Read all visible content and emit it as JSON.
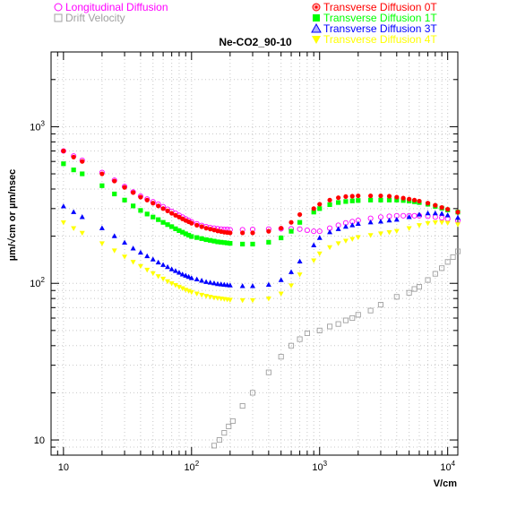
{
  "chart_data": {
    "type": "scatter",
    "title": "Ne-CO2_90-10",
    "xlabel": "V/cm",
    "ylabel": "µm/√cm or µm/nsec",
    "xscale": "log",
    "yscale": "log",
    "xlim": [
      8,
      12000
    ],
    "ylim": [
      8,
      3000
    ],
    "grid": true,
    "x_ticks": [
      {
        "value": 10,
        "base": "10",
        "exp": ""
      },
      {
        "value": 100,
        "base": "10",
        "exp": "2"
      },
      {
        "value": 1000,
        "base": "10",
        "exp": "3"
      },
      {
        "value": 10000,
        "base": "10",
        "exp": "4"
      }
    ],
    "y_ticks": [
      {
        "value": 10,
        "base": "10",
        "exp": ""
      },
      {
        "value": 100,
        "base": "10",
        "exp": "2"
      },
      {
        "value": 1000,
        "base": "10",
        "exp": "3"
      }
    ],
    "legend": {
      "placement": "top",
      "items": [
        {
          "label": "Longitudinal Diffusion",
          "series": 0,
          "column": "left"
        },
        {
          "label": "Drift Velocity",
          "series": 1,
          "column": "left"
        },
        {
          "label": "Transverse Diffusion 0T",
          "series": 2,
          "column": "right"
        },
        {
          "label": "Transverse Diffusion 1T",
          "series": 3,
          "column": "right"
        },
        {
          "label": "Transverse Diffusion 3T",
          "series": 4,
          "column": "right"
        },
        {
          "label": "Transverse Diffusion 4T",
          "series": 5,
          "column": "right"
        }
      ]
    },
    "series": [
      {
        "name": "Longitudinal Diffusion",
        "color": "#ff00ff",
        "marker": "open-circle",
        "x": [
          10,
          12,
          14,
          20,
          25,
          30,
          35,
          40,
          45,
          50,
          55,
          60,
          65,
          70,
          75,
          80,
          85,
          90,
          95,
          100,
          110,
          120,
          130,
          140,
          150,
          160,
          170,
          180,
          190,
          200,
          250,
          300,
          400,
          500,
          600,
          700,
          800,
          900,
          1000,
          1200,
          1400,
          1600,
          1800,
          2000,
          2500,
          3000,
          3500,
          4000,
          4500,
          5000,
          5500,
          6000,
          7000,
          8000,
          9000,
          10000,
          12000
        ],
        "y": [
          700,
          650,
          610,
          510,
          455,
          415,
          383,
          360,
          345,
          332,
          320,
          308,
          297,
          288,
          280,
          272,
          265,
          258,
          252,
          247,
          240,
          234,
          230,
          227,
          225,
          223,
          222,
          221,
          221,
          220,
          220,
          221,
          222,
          223,
          223,
          222,
          218,
          215,
          215,
          225,
          235,
          243,
          248,
          252,
          260,
          265,
          268,
          270,
          270,
          270,
          270,
          270,
          268,
          265,
          262,
          258,
          252
        ]
      },
      {
        "name": "Drift Velocity",
        "color": "#a0a0a0",
        "marker": "open-square",
        "x": [
          150,
          165,
          180,
          195,
          210,
          250,
          300,
          400,
          500,
          600,
          700,
          800,
          1000,
          1200,
          1400,
          1600,
          1800,
          2000,
          2500,
          3000,
          4000,
          5000,
          5500,
          6000,
          7000,
          8000,
          9000,
          10000,
          11000,
          12000
        ],
        "y": [
          9.2,
          10,
          11.1,
          12.2,
          13.2,
          16.5,
          20,
          27,
          34,
          40,
          44,
          48,
          50,
          53,
          55,
          58,
          60,
          63,
          67,
          73,
          82,
          87,
          92,
          95,
          105,
          115,
          125,
          137,
          147,
          160
        ]
      },
      {
        "name": "Transverse Diffusion 0T",
        "color": "#ff0000",
        "marker": "filled-circle",
        "x": [
          10,
          12,
          14,
          20,
          25,
          30,
          35,
          40,
          45,
          50,
          55,
          60,
          65,
          70,
          75,
          80,
          85,
          90,
          95,
          100,
          110,
          120,
          130,
          140,
          150,
          160,
          170,
          180,
          190,
          200,
          250,
          300,
          400,
          500,
          600,
          700,
          900,
          1000,
          1200,
          1400,
          1600,
          1800,
          2000,
          2500,
          3000,
          3500,
          4000,
          4500,
          5000,
          5500,
          6000,
          7000,
          8000,
          9000,
          10000,
          12000
        ],
        "y": [
          700,
          640,
          600,
          500,
          450,
          410,
          380,
          355,
          340,
          325,
          312,
          300,
          290,
          280,
          272,
          265,
          258,
          252,
          247,
          242,
          235,
          230,
          225,
          222,
          219,
          216,
          214,
          212,
          211,
          210,
          210,
          210,
          215,
          225,
          245,
          275,
          300,
          320,
          340,
          352,
          358,
          360,
          362,
          362,
          362,
          360,
          355,
          350,
          345,
          340,
          335,
          325,
          315,
          305,
          297,
          285
        ]
      },
      {
        "name": "Transverse Diffusion 1T",
        "color": "#00ff00",
        "marker": "filled-square",
        "x": [
          10,
          12,
          14,
          20,
          25,
          30,
          35,
          40,
          45,
          50,
          55,
          60,
          65,
          70,
          75,
          80,
          85,
          90,
          95,
          100,
          110,
          120,
          130,
          140,
          150,
          160,
          170,
          180,
          190,
          200,
          250,
          300,
          400,
          500,
          600,
          700,
          900,
          1000,
          1200,
          1400,
          1600,
          1800,
          2000,
          2500,
          3000,
          3500,
          4000,
          4500,
          5000,
          5500,
          6000,
          7000,
          8000,
          9000,
          10000,
          12000
        ],
        "y": [
          580,
          530,
          500,
          420,
          372,
          340,
          312,
          292,
          277,
          265,
          255,
          245,
          237,
          230,
          223,
          217,
          212,
          207,
          203,
          199,
          196,
          193,
          190,
          188,
          186,
          184,
          183,
          182,
          181,
          180,
          178,
          178,
          183,
          195,
          215,
          245,
          285,
          300,
          318,
          328,
          333,
          336,
          338,
          340,
          340,
          340,
          340,
          338,
          335,
          332,
          328,
          320,
          310,
          302,
          294,
          285
        ]
      },
      {
        "name": "Transverse Diffusion 3T",
        "color": "#0000ff",
        "marker": "filled-triangle-up",
        "x": [
          10,
          12,
          14,
          20,
          25,
          30,
          35,
          40,
          45,
          50,
          55,
          60,
          65,
          70,
          75,
          80,
          85,
          90,
          95,
          100,
          110,
          120,
          130,
          140,
          150,
          160,
          170,
          180,
          190,
          200,
          250,
          300,
          400,
          500,
          600,
          700,
          900,
          1000,
          1200,
          1400,
          1600,
          1800,
          2000,
          2500,
          3000,
          3500,
          4000,
          5000,
          6000,
          7000,
          8000,
          9000,
          10000,
          12000
        ],
        "y": [
          310,
          285,
          265,
          225,
          200,
          182,
          167,
          157,
          149,
          142,
          136,
          131,
          127,
          123,
          120,
          117,
          114,
          112,
          110,
          108,
          106,
          104,
          102,
          101,
          100,
          99,
          98.5,
          98,
          97.5,
          97,
          96,
          96,
          98,
          105,
          118,
          138,
          175,
          195,
          212,
          222,
          230,
          235,
          240,
          245,
          248,
          252,
          255,
          265,
          275,
          280,
          280,
          278,
          272,
          262
        ]
      },
      {
        "name": "Transverse Diffusion 4T",
        "color": "#ffff00",
        "marker": "filled-triangle-down",
        "x": [
          10,
          12,
          14,
          20,
          25,
          30,
          35,
          40,
          45,
          50,
          55,
          60,
          65,
          70,
          75,
          80,
          85,
          90,
          95,
          100,
          110,
          120,
          130,
          140,
          150,
          160,
          170,
          180,
          190,
          200,
          250,
          300,
          400,
          500,
          600,
          700,
          900,
          1000,
          1200,
          1400,
          1600,
          1800,
          2000,
          2500,
          3000,
          3500,
          4000,
          5000,
          6000,
          7000,
          8000,
          9000,
          10000,
          12000
        ],
        "y": [
          245,
          225,
          210,
          180,
          162,
          148,
          137,
          129,
          122,
          116,
          111,
          107,
          103,
          100,
          97.5,
          95,
          93,
          91,
          89.5,
          88,
          86,
          84.5,
          83,
          82,
          81,
          80.5,
          80,
          79.5,
          79,
          78.5,
          78,
          78,
          80,
          86,
          97,
          114,
          140,
          155,
          170,
          180,
          187,
          192,
          197,
          203,
          208,
          212,
          216,
          225,
          235,
          242,
          245,
          245,
          243,
          238
        ]
      }
    ]
  }
}
